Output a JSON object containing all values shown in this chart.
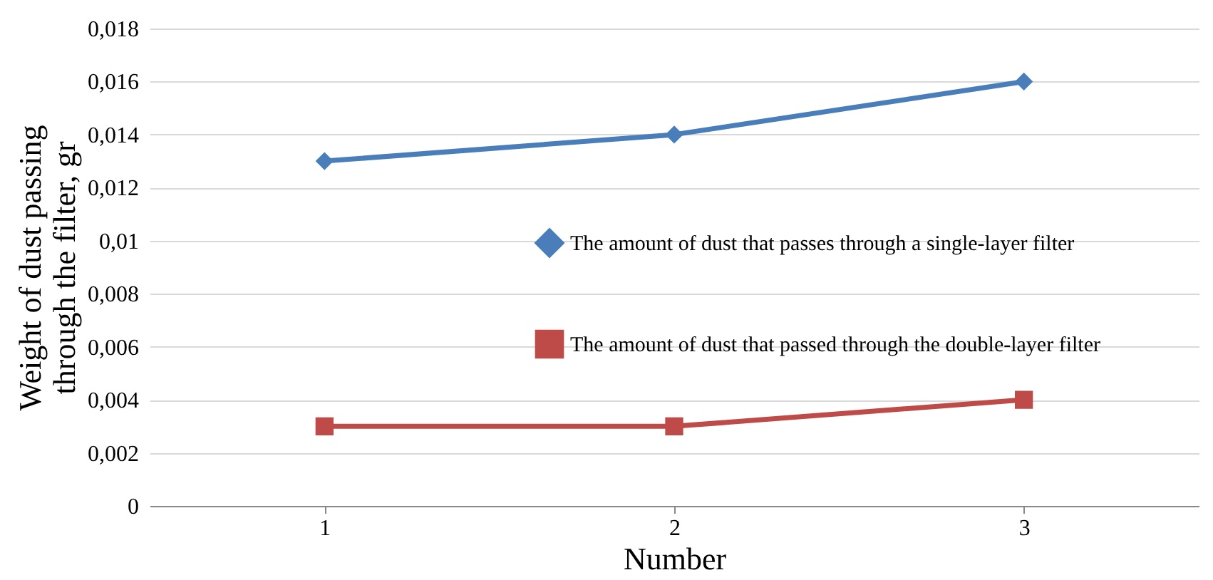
{
  "chart_data": {
    "type": "line",
    "xlabel": "Number",
    "ylabel": "Weight of dust passing through the filter, gr",
    "categories": [
      "1",
      "2",
      "3"
    ],
    "series": [
      {
        "name": "The amount of dust that passes through a single-layer filter",
        "color": "#4a7ebb",
        "marker": "diamond",
        "values": [
          0.013,
          0.014,
          0.016
        ]
      },
      {
        "name": "The amount of dust that passed through the double-layer filter",
        "color": "#be4b48",
        "marker": "square",
        "values": [
          0.003,
          0.003,
          0.004
        ]
      }
    ],
    "ylim": [
      0,
      0.018
    ],
    "yticks": [
      0,
      {
        "value": 0.002,
        "label": "0,002"
      },
      {
        "value": 0.004,
        "label": "0,004"
      },
      {
        "value": 0.006,
        "label": "0,006"
      },
      {
        "value": 0.008,
        "label": "0,008"
      },
      {
        "value": 0.01,
        "label": "0,01"
      },
      {
        "value": 0.012,
        "label": "0,012"
      },
      {
        "value": 0.014,
        "label": "0,014"
      },
      {
        "value": 0.016,
        "label": "0,016"
      },
      {
        "value": 0.018,
        "label": "0,018"
      }
    ],
    "grid": "y",
    "legend": "right",
    "line_style": "solid"
  }
}
